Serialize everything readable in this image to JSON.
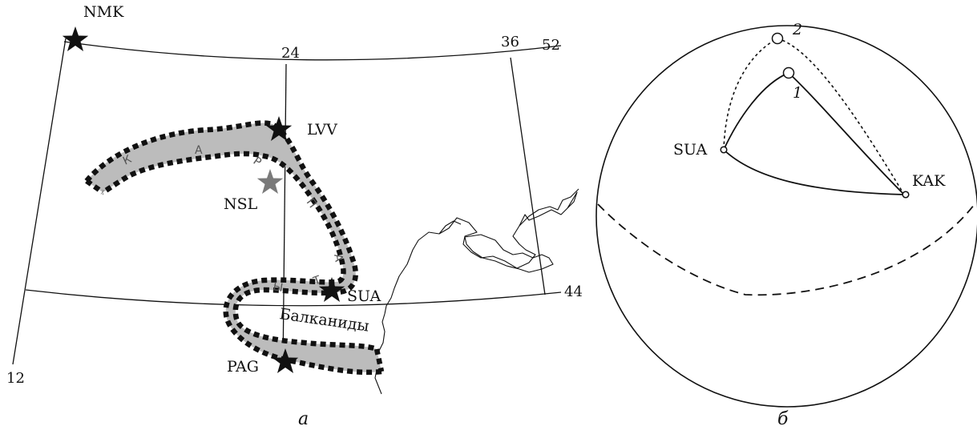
{
  "map": {
    "stations": [
      {
        "id": "nmk",
        "label": "NMK"
      },
      {
        "id": "lvv",
        "label": "LVV"
      },
      {
        "id": "nsl",
        "label": "NSL"
      },
      {
        "id": "sua",
        "label": "SUA"
      },
      {
        "id": "pag",
        "label": "PAG"
      }
    ],
    "meridian_labels": [
      "12",
      "24",
      "36"
    ],
    "parallel_labels": [
      "52",
      "44"
    ],
    "belt_letters": [
      "К",
      "А",
      "Р",
      "П",
      "А",
      "Т",
      "Ы"
    ],
    "region_label": "Балканиды",
    "caption": "а",
    "colors": {
      "belt_fill": "#bcbcbc",
      "belt_edge": "#111111",
      "star_black": "#111111",
      "star_grey": "#7a7a7a"
    }
  },
  "sphere": {
    "points": [
      {
        "id": "sua",
        "label": "SUA"
      },
      {
        "id": "kak",
        "label": "KAK"
      },
      {
        "id": "p1",
        "label": "1"
      },
      {
        "id": "p2",
        "label": "2"
      }
    ],
    "caption": "б"
  }
}
